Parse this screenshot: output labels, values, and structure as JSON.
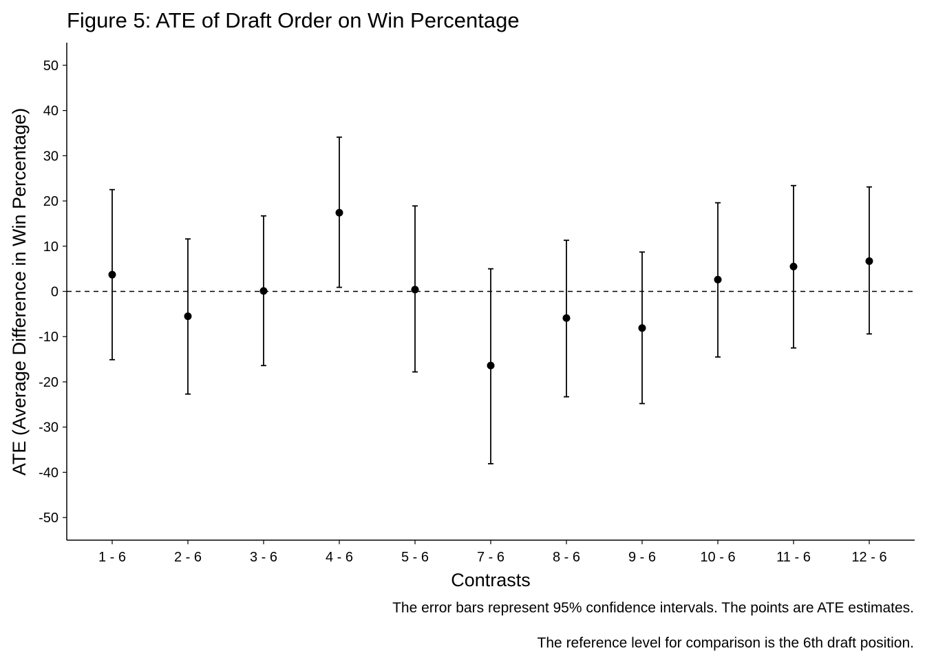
{
  "chart_data": {
    "type": "scatter",
    "title": "Figure 5: ATE of Draft Order on Win Percentage",
    "xlabel": "Contrasts",
    "ylabel": "ATE (Average Difference in Win Percentage)",
    "ylim": [
      -55,
      55
    ],
    "yticks": [
      50,
      40,
      30,
      20,
      10,
      0,
      -10,
      -20,
      -30,
      -40,
      -50
    ],
    "reference_line": 0,
    "categories": [
      "1 - 6",
      "2 - 6",
      "3 - 6",
      "4 - 6",
      "5 - 6",
      "7 - 6",
      "8 - 6",
      "9 - 6",
      "10 - 6",
      "11 - 6",
      "12 - 6"
    ],
    "estimate": [
      3.7,
      -5.5,
      0.1,
      17.4,
      0.4,
      -16.4,
      -5.9,
      -8.1,
      2.6,
      5.5,
      6.7
    ],
    "ci_lower": [
      -15.1,
      -22.7,
      -16.4,
      0.9,
      -17.8,
      -38.1,
      -23.3,
      -24.8,
      -14.5,
      -12.5,
      -9.4
    ],
    "ci_upper": [
      22.5,
      11.6,
      16.7,
      34.1,
      18.9,
      5.0,
      11.3,
      8.7,
      19.6,
      23.4,
      23.1
    ],
    "captions": [
      "The error bars represent 95% confidence intervals. The points are ATE estimates.",
      "The reference level for comparison is the 6th draft position."
    ]
  }
}
